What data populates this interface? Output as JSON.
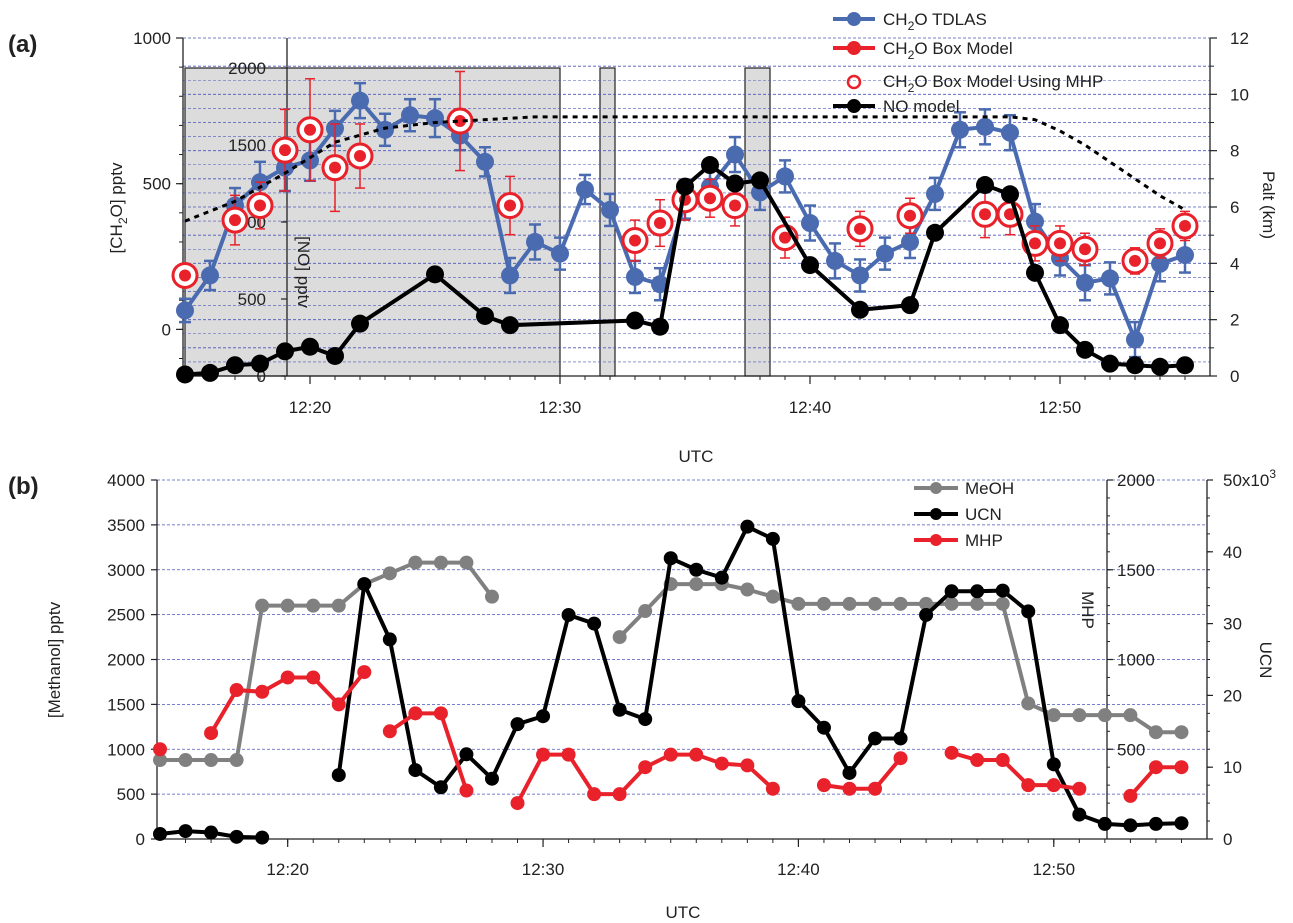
{
  "figure": {
    "panel_a_label": "(a)",
    "panel_b_label": "(b)"
  },
  "chart_data": [
    {
      "type": "line",
      "panel": "(a)",
      "xlabel": "UTC",
      "x_range_minutes": [
        735,
        776
      ],
      "x_ticks": [
        {
          "x": 740,
          "label": "12:20"
        },
        {
          "x": 750,
          "label": "12:30"
        },
        {
          "x": 760,
          "label": "12:40"
        },
        {
          "x": 770,
          "label": "12:50"
        }
      ],
      "y_left": {
        "label_main": "[CH",
        "label_sub": "2",
        "label_rest": "O] pptv",
        "range": [
          -160,
          1000
        ],
        "ticks": [
          0,
          500,
          1000
        ]
      },
      "y_inner": {
        "label": "[NO] pptv",
        "range": [
          0,
          2000
        ],
        "ticks": [
          0,
          500,
          1000,
          1500,
          2000
        ]
      },
      "y_right": {
        "label": "Palt (km)",
        "range": [
          0,
          12
        ],
        "ticks": [
          0,
          2,
          4,
          6,
          8,
          10,
          12
        ]
      },
      "shaded_regions": [
        [
          735,
          750
        ],
        [
          751.6,
          752.2
        ],
        [
          757.4,
          758.4
        ]
      ],
      "grid": "horizontal dashed blue",
      "legend_position": "top-right",
      "legend": [
        {
          "sym": "blue",
          "label": "CH",
          "sub": "2",
          "rest": "O TDLAS"
        },
        {
          "sym": "red",
          "label": "CH",
          "sub": "2",
          "rest": "O Box Model"
        },
        {
          "sym": "ring",
          "label": "CH",
          "sub": "2",
          "rest": "O  Box Model Using MHP"
        },
        {
          "sym": "black",
          "label": "NO model",
          "sub": "",
          "rest": ""
        }
      ],
      "series": [
        {
          "name": "CH2O TDLAS",
          "color": "#4a6bb0",
          "axis": "left",
          "x": [
            735,
            736,
            737,
            738,
            739,
            740,
            741,
            742,
            743,
            744,
            745,
            746,
            747,
            748,
            749,
            750,
            751,
            752,
            753,
            754,
            755,
            756,
            757,
            758,
            759,
            760,
            761,
            762,
            763,
            764,
            765,
            766,
            767,
            768,
            769,
            770,
            771,
            772,
            773,
            774,
            775
          ],
          "y": [
            65,
            185,
            425,
            505,
            555,
            580,
            690,
            785,
            685,
            735,
            725,
            665,
            575,
            185,
            300,
            260,
            480,
            410,
            180,
            155,
            435,
            490,
            600,
            470,
            525,
            365,
            235,
            185,
            260,
            300,
            465,
            685,
            695,
            675,
            370,
            245,
            160,
            175,
            -35,
            225,
            255
          ],
          "err": [
            40,
            50,
            60,
            70,
            80,
            70,
            60,
            60,
            55,
            55,
            65,
            50,
            50,
            60,
            60,
            55,
            50,
            55,
            55,
            55,
            55,
            60,
            60,
            60,
            55,
            60,
            60,
            55,
            55,
            55,
            55,
            60,
            60,
            60,
            60,
            60,
            60,
            55,
            60,
            60,
            60
          ]
        },
        {
          "name": "CH2O Box Model",
          "color": "#e8212a",
          "axis": "left",
          "x": [
            735,
            737,
            738,
            739,
            740,
            741,
            742,
            746,
            748,
            753,
            754,
            755,
            756,
            757,
            759,
            762,
            764,
            767,
            768,
            769,
            770,
            771,
            773,
            774,
            775
          ],
          "y": [
            185,
            375,
            425,
            615,
            685,
            555,
            595,
            715,
            425,
            305,
            365,
            445,
            450,
            425,
            315,
            345,
            390,
            395,
            395,
            295,
            295,
            275,
            235,
            295,
            355
          ],
          "err": [
            35,
            85,
            80,
            140,
            175,
            150,
            110,
            170,
            100,
            70,
            80,
            70,
            65,
            70,
            70,
            60,
            60,
            80,
            70,
            60,
            60,
            55,
            45,
            50,
            50
          ]
        },
        {
          "name": "NO model",
          "color": "#000000",
          "axis": "inner",
          "x": [
            735,
            736,
            737,
            738,
            739,
            740,
            741,
            742,
            745,
            747,
            748,
            753,
            754,
            755,
            756,
            757,
            758,
            760,
            762,
            764,
            765,
            767,
            768,
            769,
            770,
            771,
            772,
            773,
            774,
            775
          ],
          "y": [
            10,
            20,
            70,
            80,
            160,
            190,
            130,
            340,
            660,
            390,
            330,
            360,
            320,
            1230,
            1370,
            1250,
            1270,
            720,
            430,
            460,
            930,
            1240,
            1180,
            670,
            330,
            170,
            80,
            70,
            60,
            70
          ]
        },
        {
          "name": "Palt",
          "color": "#000000",
          "axis": "right",
          "style": "dashed",
          "x": [
            735,
            737,
            739,
            741,
            743,
            745,
            747,
            749,
            751,
            753,
            755,
            757,
            759,
            761,
            763,
            765,
            767,
            768,
            769,
            770,
            771,
            772,
            773,
            774,
            775
          ],
          "y": [
            5.5,
            6.2,
            7.2,
            8.3,
            8.8,
            9.0,
            9.1,
            9.2,
            9.2,
            9.2,
            9.2,
            9.2,
            9.2,
            9.2,
            9.2,
            9.2,
            9.2,
            9.2,
            9.1,
            8.7,
            8.2,
            7.6,
            7.0,
            6.4,
            5.9
          ]
        }
      ]
    },
    {
      "type": "line",
      "panel": "(b)",
      "xlabel": "UTC",
      "x_range_minutes": [
        735,
        776
      ],
      "x_ticks": [
        {
          "x": 740,
          "label": "12:20"
        },
        {
          "x": 750,
          "label": "12:30"
        },
        {
          "x": 760,
          "label": "12:40"
        },
        {
          "x": 770,
          "label": "12:50"
        }
      ],
      "y_left": {
        "label": "[Methanol] pptv",
        "range": [
          0,
          4000
        ],
        "ticks": [
          0,
          500,
          1000,
          1500,
          2000,
          2500,
          3000,
          3500,
          4000
        ]
      },
      "y_mhp": {
        "label": "MHP",
        "range": [
          0,
          2000
        ],
        "ticks": [
          500,
          1000,
          1500,
          2000
        ]
      },
      "y_ucn": {
        "label": "UCN",
        "range": [
          0,
          50000
        ],
        "ticks": [
          0,
          10000,
          20000,
          30000,
          40000,
          50000
        ],
        "tick_labels": [
          "0",
          "10",
          "20",
          "30",
          "40",
          "50x10"
        ],
        "top_sup": "3"
      },
      "grid": "horizontal dashed blue",
      "legend_position": "top-right",
      "legend": [
        {
          "sym": "gray",
          "label": "MeOH"
        },
        {
          "sym": "black",
          "label": "UCN"
        },
        {
          "sym": "red",
          "label": "MHP"
        }
      ],
      "series": [
        {
          "name": "MeOH",
          "color": "#808080",
          "axis": "left",
          "segments": [
            {
              "x": [
                735,
                736,
                737,
                738,
                739,
                740,
                741,
                742,
                743,
                744,
                745,
                746,
                747,
                748
              ],
              "y": [
                880,
                880,
                880,
                880,
                2600,
                2600,
                2600,
                2600,
                2840,
                2960,
                3080,
                3080,
                3080,
                2700
              ]
            },
            {
              "x": [
                753,
                754,
                755,
                756,
                757,
                758,
                759,
                760,
                761,
                762,
                763,
                764,
                765,
                766,
                767,
                768,
                769,
                770,
                771,
                772,
                773,
                774,
                775
              ],
              "y": [
                2250,
                2540,
                2840,
                2840,
                2840,
                2780,
                2700,
                2620,
                2620,
                2620,
                2620,
                2620,
                2620,
                2620,
                2620,
                2620,
                1510,
                1380,
                1380,
                1380,
                1380,
                1190,
                1190
              ]
            }
          ]
        },
        {
          "name": "UCN",
          "color": "#000000",
          "axis": "ucn",
          "segments": [
            {
              "x": [
                735,
                736,
                737,
                738,
                739
              ],
              "y": [
                700,
                1100,
                900,
                300,
                200
              ]
            },
            {
              "x": [
                742,
                743,
                744,
                745,
                746,
                747,
                748,
                749,
                750,
                751,
                752,
                753,
                754,
                755,
                756,
                757,
                758,
                759,
                760,
                761,
                762,
                763,
                764,
                765,
                766,
                767,
                768,
                769,
                770,
                771,
                772,
                773,
                774,
                775
              ],
              "y": [
                8900,
                35500,
                27800,
                9600,
                7200,
                11800,
                8400,
                16000,
                17100,
                31200,
                30000,
                18000,
                16700,
                39100,
                37500,
                36400,
                43500,
                41800,
                19200,
                15500,
                9200,
                14000,
                14000,
                31200,
                34500,
                34500,
                34600,
                31700,
                10400,
                3400,
                2100,
                1900,
                2100,
                2200
              ]
            }
          ]
        },
        {
          "name": "MHP",
          "color": "#e8212a",
          "axis": "mhp",
          "segments": [
            {
              "x": [
                735
              ],
              "y": [
                500
              ]
            },
            {
              "x": [
                737,
                738,
                739,
                740,
                741,
                742,
                743
              ],
              "y": [
                590,
                830,
                820,
                900,
                900,
                750,
                930
              ]
            },
            {
              "x": [
                744,
                745,
                746,
                747
              ],
              "y": [
                600,
                700,
                700,
                270
              ]
            },
            {
              "x": [
                749,
                750,
                751,
                752,
                753,
                754,
                755,
                756,
                757,
                758,
                759
              ],
              "y": [
                200,
                470,
                470,
                250,
                250,
                400,
                470,
                470,
                420,
                410,
                280
              ]
            },
            {
              "x": [
                761,
                762,
                763,
                764
              ],
              "y": [
                300,
                280,
                280,
                450
              ]
            },
            {
              "x": [
                766,
                767,
                768,
                769,
                770,
                771
              ],
              "y": [
                480,
                440,
                440,
                300,
                300,
                280
              ]
            },
            {
              "x": [
                773,
                774,
                775
              ],
              "y": [
                240,
                400,
                400
              ]
            }
          ]
        }
      ]
    }
  ]
}
